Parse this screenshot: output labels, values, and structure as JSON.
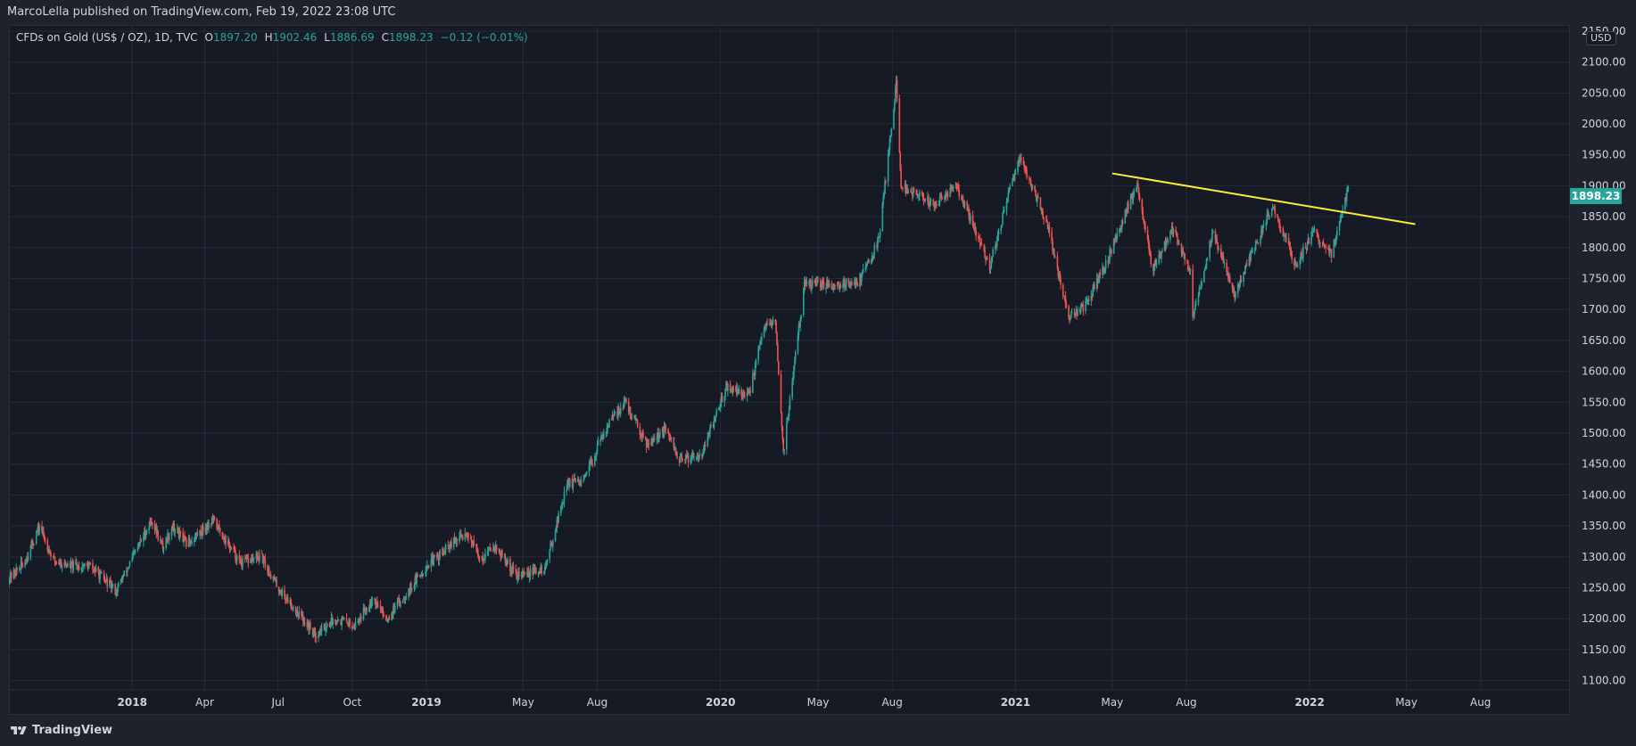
{
  "publish_line": "MarcoLella published on TradingView.com, Feb 19, 2022 23:08 UTC",
  "legend": {
    "symbol": "CFDs on Gold (US$ / OZ), 1D, TVC",
    "open_label": "O",
    "open_value": "1897.20",
    "high_label": "H",
    "high_value": "1902.46",
    "low_label": "L",
    "low_value": "1886.69",
    "close_label": "C",
    "close_value": "1898.23",
    "change": "−0.12 (−0.01%)"
  },
  "currency": "USD",
  "last_price": "1898.23",
  "brand": "TradingView",
  "colors": {
    "up": "#26a69a",
    "down": "#ef5350",
    "trendline": "#ffeb3b",
    "background": "#161a25",
    "grid": "#262b37",
    "axis_text": "#d1d4dc"
  },
  "chart_data": {
    "type": "candlestick",
    "y_axis_ticks": [
      1100,
      1150,
      1200,
      1250,
      1300,
      1350,
      1400,
      1450,
      1500,
      1550,
      1600,
      1650,
      1700,
      1750,
      1800,
      1850,
      1900,
      1950,
      2000,
      2050,
      2100,
      2150
    ],
    "y_tick_labels": [
      "1100.00",
      "1150.00",
      "1200.00",
      "1250.00",
      "1300.00",
      "1350.00",
      "1400.00",
      "1450.00",
      "1500.00",
      "1550.00",
      "1600.00",
      "1650.00",
      "1700.00",
      "1750.00",
      "1800.00",
      "1850.00",
      "1900.00",
      "1950.00",
      "2000.00",
      "2050.00",
      "2100.00",
      "2150.00"
    ],
    "x_ticks": [
      {
        "date": "2018-01-01",
        "label": "2018",
        "major": true
      },
      {
        "date": "2018-04-01",
        "label": "Apr",
        "major": false
      },
      {
        "date": "2018-07-01",
        "label": "Jul",
        "major": false
      },
      {
        "date": "2018-10-01",
        "label": "Oct",
        "major": false
      },
      {
        "date": "2019-01-01",
        "label": "2019",
        "major": true
      },
      {
        "date": "2019-05-01",
        "label": "May",
        "major": false
      },
      {
        "date": "2019-08-01",
        "label": "Aug",
        "major": false
      },
      {
        "date": "2020-01-01",
        "label": "2020",
        "major": true
      },
      {
        "date": "2020-05-01",
        "label": "May",
        "major": false
      },
      {
        "date": "2020-08-01",
        "label": "Aug",
        "major": false
      },
      {
        "date": "2021-01-01",
        "label": "2021",
        "major": true
      },
      {
        "date": "2021-05-01",
        "label": "May",
        "major": false
      },
      {
        "date": "2021-08-01",
        "label": "Aug",
        "major": false
      },
      {
        "date": "2022-01-01",
        "label": "2022",
        "major": true
      },
      {
        "date": "2022-05-01",
        "label": "May",
        "major": false
      },
      {
        "date": "2022-08-01",
        "label": "Aug",
        "major": false
      }
    ],
    "x_range": [
      "2017-08-01",
      "2022-11-20"
    ],
    "y_range": [
      1085,
      2160
    ],
    "price_path": [
      {
        "date": "2017-08-01",
        "price": 1265
      },
      {
        "date": "2017-08-20",
        "price": 1290
      },
      {
        "date": "2017-09-08",
        "price": 1350
      },
      {
        "date": "2017-09-25",
        "price": 1295
      },
      {
        "date": "2017-10-15",
        "price": 1285
      },
      {
        "date": "2017-11-10",
        "price": 1285
      },
      {
        "date": "2017-12-12",
        "price": 1245
      },
      {
        "date": "2018-01-25",
        "price": 1360
      },
      {
        "date": "2018-02-08",
        "price": 1315
      },
      {
        "date": "2018-02-20",
        "price": 1350
      },
      {
        "date": "2018-03-10",
        "price": 1320
      },
      {
        "date": "2018-04-11",
        "price": 1360
      },
      {
        "date": "2018-05-15",
        "price": 1290
      },
      {
        "date": "2018-06-10",
        "price": 1300
      },
      {
        "date": "2018-07-01",
        "price": 1250
      },
      {
        "date": "2018-08-16",
        "price": 1175
      },
      {
        "date": "2018-09-10",
        "price": 1200
      },
      {
        "date": "2018-10-05",
        "price": 1190
      },
      {
        "date": "2018-10-26",
        "price": 1235
      },
      {
        "date": "2018-11-13",
        "price": 1200
      },
      {
        "date": "2019-01-01",
        "price": 1285
      },
      {
        "date": "2019-02-20",
        "price": 1340
      },
      {
        "date": "2019-03-10",
        "price": 1295
      },
      {
        "date": "2019-03-25",
        "price": 1320
      },
      {
        "date": "2019-04-23",
        "price": 1270
      },
      {
        "date": "2019-05-28",
        "price": 1280
      },
      {
        "date": "2019-06-25",
        "price": 1420
      },
      {
        "date": "2019-07-15",
        "price": 1420
      },
      {
        "date": "2019-08-10",
        "price": 1505
      },
      {
        "date": "2019-09-04",
        "price": 1550
      },
      {
        "date": "2019-10-01",
        "price": 1485
      },
      {
        "date": "2019-10-25",
        "price": 1505
      },
      {
        "date": "2019-11-12",
        "price": 1455
      },
      {
        "date": "2019-12-10",
        "price": 1470
      },
      {
        "date": "2020-01-08",
        "price": 1575
      },
      {
        "date": "2020-02-05",
        "price": 1560
      },
      {
        "date": "2020-02-24",
        "price": 1670
      },
      {
        "date": "2020-03-09",
        "price": 1680
      },
      {
        "date": "2020-03-19",
        "price": 1470
      },
      {
        "date": "2020-04-14",
        "price": 1740
      },
      {
        "date": "2020-05-20",
        "price": 1740
      },
      {
        "date": "2020-06-20",
        "price": 1745
      },
      {
        "date": "2020-07-15",
        "price": 1810
      },
      {
        "date": "2020-08-06",
        "price": 2065
      },
      {
        "date": "2020-08-12",
        "price": 1900
      },
      {
        "date": "2020-09-20",
        "price": 1870
      },
      {
        "date": "2020-10-20",
        "price": 1900
      },
      {
        "date": "2020-11-30",
        "price": 1770
      },
      {
        "date": "2021-01-06",
        "price": 1950
      },
      {
        "date": "2021-02-10",
        "price": 1835
      },
      {
        "date": "2021-03-08",
        "price": 1685
      },
      {
        "date": "2021-03-31",
        "price": 1710
      },
      {
        "date": "2021-04-25",
        "price": 1780
      },
      {
        "date": "2021-06-01",
        "price": 1905
      },
      {
        "date": "2021-06-20",
        "price": 1765
      },
      {
        "date": "2021-07-15",
        "price": 1830
      },
      {
        "date": "2021-08-06",
        "price": 1760
      },
      {
        "date": "2021-08-09",
        "price": 1690
      },
      {
        "date": "2021-09-03",
        "price": 1825
      },
      {
        "date": "2021-09-30",
        "price": 1725
      },
      {
        "date": "2021-10-20",
        "price": 1785
      },
      {
        "date": "2021-11-16",
        "price": 1870
      },
      {
        "date": "2021-12-15",
        "price": 1770
      },
      {
        "date": "2022-01-05",
        "price": 1825
      },
      {
        "date": "2022-01-28",
        "price": 1790
      },
      {
        "date": "2022-02-18",
        "price": 1898
      }
    ],
    "trendline": {
      "start": {
        "date": "2021-05-01",
        "price": 1920
      },
      "end": {
        "date": "2022-05-12",
        "price": 1838
      }
    }
  }
}
